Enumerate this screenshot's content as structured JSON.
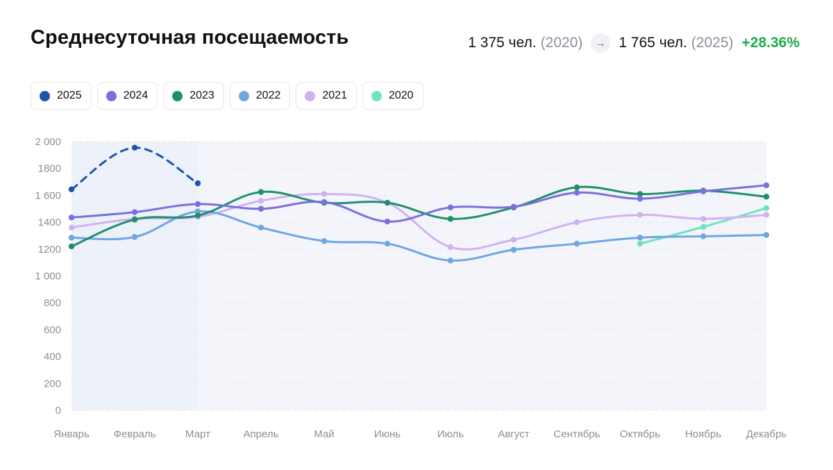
{
  "header": {
    "title": "Среднесуточная посещаемость",
    "from_value": "1 375 чел.",
    "from_year": "(2020)",
    "to_value": "1 765 чел.",
    "to_year": "(2025)",
    "change": "+28.36%"
  },
  "legend": [
    {
      "label": "2025",
      "color": "#1a56a6"
    },
    {
      "label": "2024",
      "color": "#7b6fe0"
    },
    {
      "label": "2023",
      "color": "#1f8f6a"
    },
    {
      "label": "2022",
      "color": "#6fa5e3"
    },
    {
      "label": "2021",
      "color": "#d2b1f2"
    },
    {
      "label": "2020",
      "color": "#6ee3c4"
    }
  ],
  "chart_data": {
    "type": "line",
    "categories": [
      "Январь",
      "Февраль",
      "Март",
      "Апрель",
      "Май",
      "Июнь",
      "Июль",
      "Август",
      "Сентябрь",
      "Октябрь",
      "Ноябрь",
      "Декабрь"
    ],
    "ylim": [
      0,
      2000
    ],
    "yticks": [
      "0",
      "200",
      "400",
      "600",
      "800",
      "1 000",
      "1200",
      "1400",
      "1 600",
      "1800",
      "2 000"
    ],
    "grid": true,
    "legend_position": "top-left",
    "series": [
      {
        "name": "2025",
        "color": "#1a56a6",
        "dashed": true,
        "values": [
          1645,
          1955,
          1690,
          null,
          null,
          null,
          null,
          null,
          null,
          null,
          null,
          null
        ]
      },
      {
        "name": "2024",
        "color": "#7b6fe0",
        "values": [
          1435,
          1475,
          1535,
          1500,
          1550,
          1405,
          1510,
          1515,
          1620,
          1575,
          1630,
          1675
        ]
      },
      {
        "name": "2023",
        "color": "#1f8f6a",
        "values": [
          1220,
          1420,
          1450,
          1625,
          1545,
          1545,
          1425,
          1510,
          1660,
          1610,
          1635,
          1590
        ]
      },
      {
        "name": "2022",
        "color": "#6fa5e3",
        "values": [
          1285,
          1290,
          1480,
          1360,
          1260,
          1240,
          1115,
          1195,
          1240,
          1285,
          1295,
          1305
        ]
      },
      {
        "name": "2021",
        "color": "#d2b1f2",
        "values": [
          1360,
          1425,
          1440,
          1560,
          1610,
          1545,
          1215,
          1270,
          1400,
          1455,
          1425,
          1455
        ]
      },
      {
        "name": "2020",
        "color": "#6ee3c4",
        "values": [
          null,
          null,
          null,
          null,
          null,
          null,
          null,
          null,
          null,
          1240,
          1365,
          1505
        ]
      }
    ]
  }
}
